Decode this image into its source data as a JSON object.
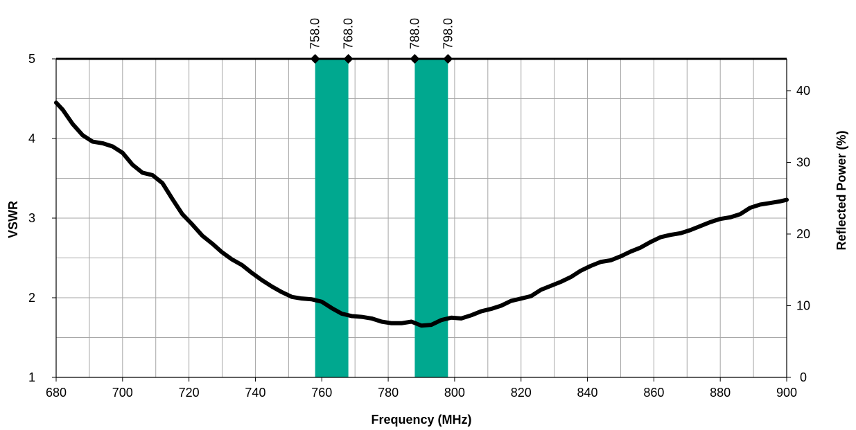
{
  "chart_data": {
    "type": "line",
    "xlabel": "Frequency (MHz)",
    "ylabel": "VSWR",
    "y2label": "Reflected Power (%)",
    "xlim": [
      680,
      900
    ],
    "ylim": [
      1,
      5
    ],
    "y2lim": [
      0,
      44.44
    ],
    "x_ticks": [
      680,
      700,
      720,
      740,
      760,
      780,
      800,
      820,
      840,
      860,
      880,
      900
    ],
    "y_ticks": [
      1,
      2,
      3,
      4,
      5
    ],
    "y2_ticks": [
      0,
      10,
      20,
      30,
      40
    ],
    "grid": true,
    "bands": [
      {
        "start": 758,
        "end": 768,
        "start_label": "758.0",
        "end_label": "768.0"
      },
      {
        "start": 788,
        "end": 798,
        "start_label": "788.0",
        "end_label": "798.0"
      }
    ],
    "band_color": "#00A88F",
    "line_color": "#000000",
    "series": [
      {
        "x": [
          680,
          682,
          685,
          688,
          691,
          694,
          697,
          700,
          703,
          706,
          709,
          712,
          715,
          718,
          721,
          724,
          727,
          730,
          733,
          736,
          739,
          742,
          745,
          748,
          751,
          754,
          757,
          760,
          763,
          766,
          769,
          772,
          775,
          778,
          781,
          784,
          787,
          790,
          793,
          796,
          799,
          802,
          805,
          808,
          811,
          814,
          817,
          820,
          823,
          826,
          829,
          832,
          835,
          838,
          841,
          844,
          847,
          850,
          853,
          856,
          859,
          862,
          865,
          868,
          871,
          874,
          877,
          880,
          883,
          886,
          889,
          892,
          895,
          898,
          900
        ],
        "y": [
          4.45,
          4.36,
          4.18,
          4.04,
          3.96,
          3.94,
          3.9,
          3.82,
          3.67,
          3.57,
          3.54,
          3.44,
          3.24,
          3.05,
          2.92,
          2.78,
          2.68,
          2.57,
          2.48,
          2.41,
          2.31,
          2.22,
          2.14,
          2.07,
          2.01,
          1.99,
          1.98,
          1.95,
          1.87,
          1.8,
          1.77,
          1.76,
          1.74,
          1.7,
          1.68,
          1.68,
          1.7,
          1.65,
          1.66,
          1.72,
          1.75,
          1.74,
          1.78,
          1.83,
          1.86,
          1.9,
          1.96,
          1.99,
          2.02,
          2.1,
          2.15,
          2.2,
          2.26,
          2.34,
          2.4,
          2.45,
          2.47,
          2.52,
          2.58,
          2.63,
          2.7,
          2.76,
          2.79,
          2.81,
          2.85,
          2.9,
          2.95,
          2.99,
          3.01,
          3.05,
          3.13,
          3.17,
          3.19,
          3.21,
          3.23
        ]
      }
    ]
  }
}
